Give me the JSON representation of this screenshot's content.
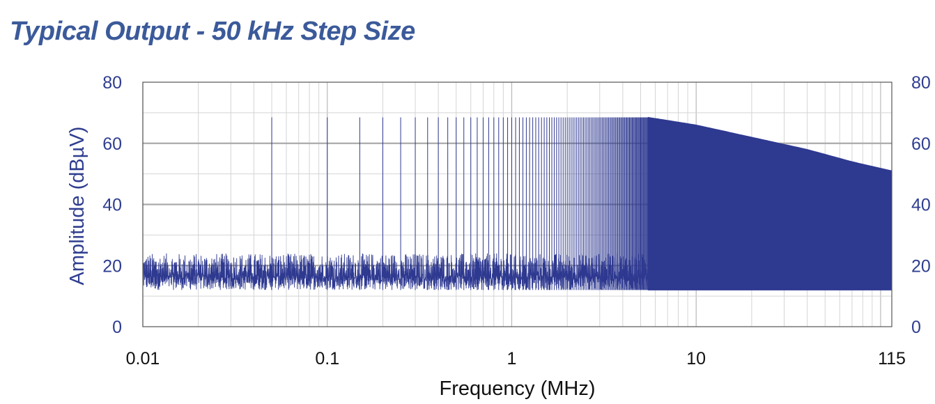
{
  "chart_data": {
    "type": "line",
    "title": "Typical Output - 50 kHz Step Size",
    "xlabel": "Frequency (MHz)",
    "ylabel": "Amplitude (dBµV)",
    "x_scale": "log",
    "xlim": [
      0.01,
      115
    ],
    "ylim": [
      0,
      80
    ],
    "x_ticks": [
      0.01,
      0.1,
      1,
      10,
      115
    ],
    "x_tick_labels": [
      "0.01",
      "0.1",
      "1",
      "10",
      "115"
    ],
    "y_ticks": [
      0,
      20,
      40,
      60,
      80
    ],
    "y_tick_labels": [
      "0",
      "20",
      "40",
      "60",
      "80"
    ],
    "y_ticks_right": true,
    "grid": true,
    "legend": "none",
    "series": [
      {
        "comb_step_mhz": 0.05,
        "noise_floor_dbuv": [
          12,
          24
        ],
        "envelope": {
          "x": [
            0.05,
            1,
            3,
            5.5,
            10,
            20,
            40,
            70,
            115
          ],
          "y": [
            68.5,
            68.5,
            68.5,
            68.5,
            66,
            62,
            58,
            54,
            51
          ]
        }
      }
    ],
    "colors": {
      "series": "#2e3990",
      "title": "#3b5a9a",
      "tick_text": "#2f3e8f",
      "grid_major": "#b8b8b8",
      "grid_minor": "#d4d4d4"
    }
  }
}
